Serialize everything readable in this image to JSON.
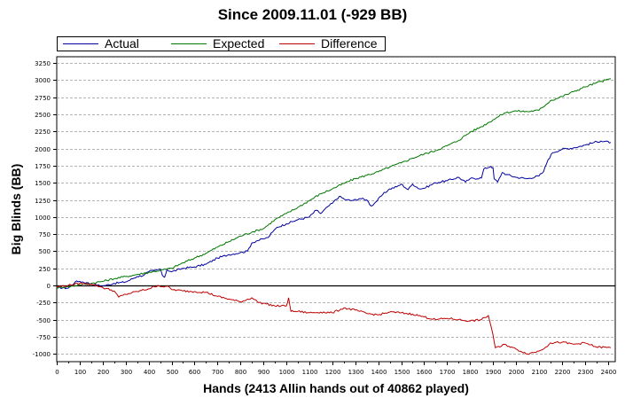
{
  "chart_data": {
    "type": "line",
    "title": "Since 2009.11.01 (-929 BB)",
    "xlabel": "Hands (2413 Allin hands out of 40862 played)",
    "ylabel": "Big Blinds (BB)",
    "xlim": [
      0,
      2413
    ],
    "ylim": [
      -1100,
      3250
    ],
    "xticks": [
      0,
      100,
      200,
      300,
      400,
      500,
      600,
      700,
      800,
      900,
      1000,
      1100,
      1200,
      1300,
      1400,
      1500,
      1600,
      1700,
      1800,
      1900,
      2000,
      2100,
      2200,
      2300,
      2400
    ],
    "yticks": [
      -1000,
      -750,
      -500,
      -250,
      0,
      250,
      500,
      750,
      1000,
      1250,
      1500,
      1750,
      2000,
      2250,
      2500,
      2750,
      3000,
      3250
    ],
    "grid": true,
    "legend_position": "top-left",
    "series": [
      {
        "name": "Actual",
        "color": "#0000a0",
        "points": [
          [
            0,
            -30
          ],
          [
            50,
            -40
          ],
          [
            80,
            50
          ],
          [
            100,
            60
          ],
          [
            130,
            40
          ],
          [
            150,
            20
          ],
          [
            200,
            -10
          ],
          [
            250,
            30
          ],
          [
            300,
            50
          ],
          [
            350,
            130
          ],
          [
            380,
            150
          ],
          [
            400,
            200
          ],
          [
            430,
            220
          ],
          [
            450,
            240
          ],
          [
            460,
            150
          ],
          [
            470,
            120
          ],
          [
            480,
            230
          ],
          [
            500,
            200
          ],
          [
            550,
            250
          ],
          [
            600,
            270
          ],
          [
            650,
            310
          ],
          [
            700,
            400
          ],
          [
            750,
            450
          ],
          [
            800,
            480
          ],
          [
            830,
            500
          ],
          [
            850,
            620
          ],
          [
            870,
            650
          ],
          [
            900,
            680
          ],
          [
            920,
            700
          ],
          [
            940,
            780
          ],
          [
            960,
            850
          ],
          [
            1000,
            900
          ],
          [
            1050,
            960
          ],
          [
            1100,
            1000
          ],
          [
            1130,
            1100
          ],
          [
            1150,
            1050
          ],
          [
            1180,
            1150
          ],
          [
            1200,
            1200
          ],
          [
            1230,
            1300
          ],
          [
            1260,
            1250
          ],
          [
            1290,
            1240
          ],
          [
            1320,
            1270
          ],
          [
            1350,
            1250
          ],
          [
            1370,
            1160
          ],
          [
            1390,
            1220
          ],
          [
            1420,
            1330
          ],
          [
            1450,
            1410
          ],
          [
            1480,
            1440
          ],
          [
            1500,
            1480
          ],
          [
            1530,
            1400
          ],
          [
            1550,
            1480
          ],
          [
            1580,
            1410
          ],
          [
            1600,
            1420
          ],
          [
            1650,
            1500
          ],
          [
            1700,
            1530
          ],
          [
            1750,
            1580
          ],
          [
            1780,
            1510
          ],
          [
            1800,
            1560
          ],
          [
            1850,
            1570
          ],
          [
            1860,
            1700
          ],
          [
            1890,
            1740
          ],
          [
            1900,
            1720
          ],
          [
            1905,
            1560
          ],
          [
            1920,
            1510
          ],
          [
            1940,
            1650
          ],
          [
            1960,
            1620
          ],
          [
            2000,
            1580
          ],
          [
            2050,
            1560
          ],
          [
            2100,
            1600
          ],
          [
            2120,
            1660
          ],
          [
            2140,
            1840
          ],
          [
            2160,
            1940
          ],
          [
            2200,
            1990
          ],
          [
            2250,
            2010
          ],
          [
            2300,
            2050
          ],
          [
            2340,
            2090
          ],
          [
            2370,
            2110
          ],
          [
            2413,
            2090
          ]
        ]
      },
      {
        "name": "Expected",
        "color": "#007700",
        "points": [
          [
            0,
            -30
          ],
          [
            50,
            -20
          ],
          [
            100,
            10
          ],
          [
            150,
            30
          ],
          [
            200,
            60
          ],
          [
            250,
            100
          ],
          [
            300,
            130
          ],
          [
            350,
            160
          ],
          [
            400,
            190
          ],
          [
            450,
            220
          ],
          [
            500,
            250
          ],
          [
            550,
            330
          ],
          [
            600,
            400
          ],
          [
            650,
            470
          ],
          [
            700,
            560
          ],
          [
            750,
            640
          ],
          [
            800,
            720
          ],
          [
            850,
            780
          ],
          [
            900,
            830
          ],
          [
            950,
            960
          ],
          [
            1000,
            1050
          ],
          [
            1050,
            1140
          ],
          [
            1100,
            1240
          ],
          [
            1150,
            1340
          ],
          [
            1200,
            1410
          ],
          [
            1250,
            1490
          ],
          [
            1300,
            1560
          ],
          [
            1350,
            1610
          ],
          [
            1400,
            1660
          ],
          [
            1450,
            1730
          ],
          [
            1500,
            1790
          ],
          [
            1550,
            1860
          ],
          [
            1600,
            1920
          ],
          [
            1650,
            1970
          ],
          [
            1700,
            2040
          ],
          [
            1750,
            2120
          ],
          [
            1800,
            2240
          ],
          [
            1850,
            2320
          ],
          [
            1900,
            2420
          ],
          [
            1950,
            2520
          ],
          [
            2000,
            2550
          ],
          [
            2050,
            2540
          ],
          [
            2100,
            2560
          ],
          [
            2150,
            2700
          ],
          [
            2200,
            2760
          ],
          [
            2250,
            2830
          ],
          [
            2300,
            2900
          ],
          [
            2350,
            2960
          ],
          [
            2413,
            3020
          ]
        ]
      },
      {
        "name": "Difference",
        "color": "#c00000",
        "points": [
          [
            0,
            -20
          ],
          [
            50,
            0
          ],
          [
            100,
            30
          ],
          [
            150,
            20
          ],
          [
            200,
            -30
          ],
          [
            250,
            -80
          ],
          [
            270,
            -170
          ],
          [
            300,
            -130
          ],
          [
            350,
            -90
          ],
          [
            400,
            -50
          ],
          [
            440,
            0
          ],
          [
            460,
            -20
          ],
          [
            480,
            -10
          ],
          [
            500,
            -60
          ],
          [
            550,
            -80
          ],
          [
            600,
            -90
          ],
          [
            650,
            -100
          ],
          [
            700,
            -160
          ],
          [
            750,
            -200
          ],
          [
            800,
            -240
          ],
          [
            850,
            -180
          ],
          [
            880,
            -250
          ],
          [
            900,
            -260
          ],
          [
            950,
            -300
          ],
          [
            1000,
            -300
          ],
          [
            1010,
            -180
          ],
          [
            1020,
            -380
          ],
          [
            1050,
            -380
          ],
          [
            1100,
            -400
          ],
          [
            1150,
            -390
          ],
          [
            1200,
            -400
          ],
          [
            1250,
            -330
          ],
          [
            1300,
            -360
          ],
          [
            1350,
            -410
          ],
          [
            1400,
            -430
          ],
          [
            1450,
            -390
          ],
          [
            1500,
            -400
          ],
          [
            1550,
            -420
          ],
          [
            1600,
            -460
          ],
          [
            1650,
            -500
          ],
          [
            1700,
            -480
          ],
          [
            1750,
            -500
          ],
          [
            1800,
            -520
          ],
          [
            1850,
            -500
          ],
          [
            1880,
            -440
          ],
          [
            1900,
            -720
          ],
          [
            1910,
            -910
          ],
          [
            1930,
            -900
          ],
          [
            1950,
            -860
          ],
          [
            2000,
            -930
          ],
          [
            2050,
            -1000
          ],
          [
            2100,
            -960
          ],
          [
            2130,
            -900
          ],
          [
            2150,
            -840
          ],
          [
            2200,
            -830
          ],
          [
            2250,
            -860
          ],
          [
            2300,
            -840
          ],
          [
            2350,
            -900
          ],
          [
            2413,
            -910
          ]
        ]
      }
    ]
  }
}
